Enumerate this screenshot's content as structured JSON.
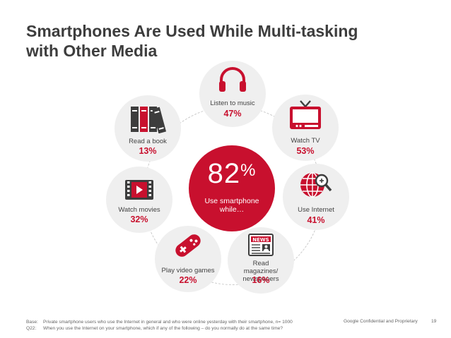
{
  "title": {
    "line1": "Smartphones Are Used While Multi-tasking",
    "line2": "with Other Media"
  },
  "center": {
    "value": "82",
    "unit": "%",
    "label": "Use smartphone while…",
    "color": "#c8102e"
  },
  "activities": [
    {
      "label": "Listen to music",
      "pct": "47%",
      "icon": "headphones-icon"
    },
    {
      "label": "Watch TV",
      "pct": "53%",
      "icon": "tv-icon"
    },
    {
      "label": "Use Internet",
      "pct": "41%",
      "icon": "globe-search-icon"
    },
    {
      "label": "Read magazines/ newspapers",
      "pct": "16%",
      "icon": "newspaper-icon"
    },
    {
      "label": "Play video games",
      "pct": "22%",
      "icon": "gamepad-icon"
    },
    {
      "label": "Watch movies",
      "pct": "32%",
      "icon": "film-icon"
    },
    {
      "label": "Read a book",
      "pct": "13%",
      "icon": "books-icon"
    }
  ],
  "footer": {
    "base_key": "Base:",
    "base_text": "Private smartphone users who use the Internet in general and who were online yesterday with their smartphone, n= 1000",
    "q_key": "Q22:",
    "q_text": "When you use the Internet on your smartphone, which if any of the following – do you normally do at the same time?",
    "confidential": "Google Confidential and Proprietary",
    "page": "19"
  }
}
